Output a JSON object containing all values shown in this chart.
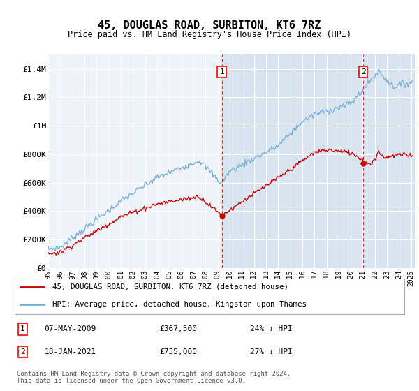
{
  "title": "45, DOUGLAS ROAD, SURBITON, KT6 7RZ",
  "subtitle": "Price paid vs. HM Land Registry's House Price Index (HPI)",
  "ytick_labels": [
    "£0",
    "£200K",
    "£400K",
    "£600K",
    "£800K",
    "£1M",
    "£1.2M",
    "£1.4M"
  ],
  "yticks": [
    0,
    200000,
    400000,
    600000,
    800000,
    1000000,
    1200000,
    1400000
  ],
  "ylim": [
    0,
    1500000
  ],
  "xlim_start": 1995,
  "xlim_end": 2025.3,
  "hpi_color": "#7ab0d4",
  "hpi_fill_color": "#d6e8f5",
  "price_color": "#cc0000",
  "marker1_x": 2009.35,
  "marker1_y": 367500,
  "marker2_x": 2021.04,
  "marker2_y": 735000,
  "marker1_label": "1",
  "marker2_label": "2",
  "marker1_date": "07-MAY-2009",
  "marker1_price": "£367,500",
  "marker1_hpi_pct": "24% ↓ HPI",
  "marker2_date": "18-JAN-2021",
  "marker2_price": "£735,000",
  "marker2_hpi_pct": "27% ↓ HPI",
  "legend_line1": "45, DOUGLAS ROAD, SURBITON, KT6 7RZ (detached house)",
  "legend_line2": "HPI: Average price, detached house, Kingston upon Thames",
  "footnote": "Contains HM Land Registry data © Crown copyright and database right 2024.\nThis data is licensed under the Open Government Licence v3.0.",
  "background_color": "#ffffff",
  "plot_bg_color": "#eef3f9",
  "grid_color": "#ffffff",
  "vline_fill_color": "#cfe0ef"
}
